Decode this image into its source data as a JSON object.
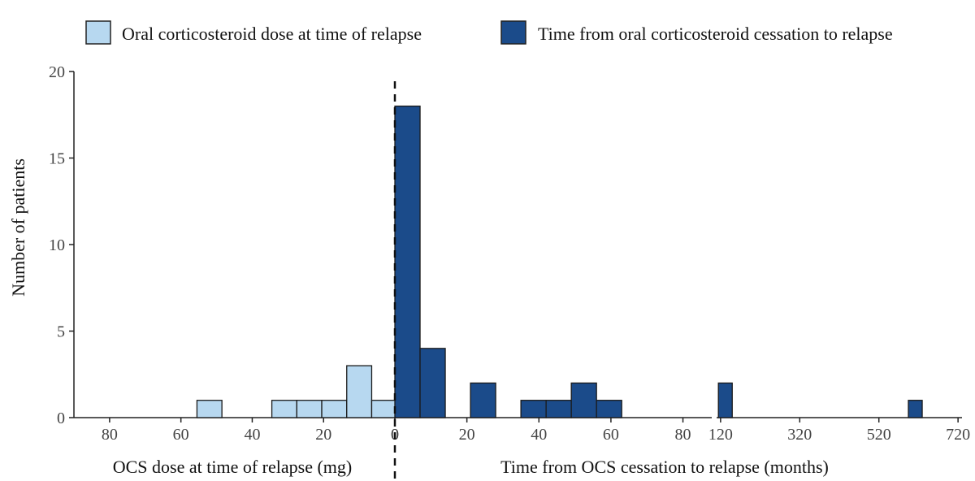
{
  "chart_data": {
    "type": "bar",
    "ylabel": "Number of patients",
    "ylim": [
      0,
      20
    ],
    "y_ticks": [
      "0",
      "5",
      "10",
      "15",
      "20"
    ],
    "legend": {
      "placement": "top",
      "items": [
        {
          "label": "Oral corticosteroid dose at time of relapse",
          "color": "#b7d8f0"
        },
        {
          "label": "Time from oral corticosteroid cessation to relapse",
          "color": "#1b4b8a"
        }
      ]
    },
    "reference_line": {
      "x": 0,
      "style": "dashed"
    },
    "panels": [
      {
        "name": "dose",
        "xlabel": "OCS dose at time of relapse (mg)",
        "reversed": true,
        "xlim": [
          90,
          0
        ],
        "x_ticks": [
          "80",
          "60",
          "40",
          "20",
          "0"
        ],
        "series": "Oral corticosteroid dose at time of relapse",
        "bin_width": 7,
        "bins": [
          {
            "x": 52,
            "count": 1
          },
          {
            "x": 31,
            "count": 1
          },
          {
            "x": 24,
            "count": 1
          },
          {
            "x": 17,
            "count": 1
          },
          {
            "x": 10,
            "count": 3
          },
          {
            "x": 3,
            "count": 1
          }
        ]
      },
      {
        "name": "time-short",
        "xlabel": "Time from OCS cessation to relapse (months)",
        "reversed": false,
        "xlim": [
          0,
          88
        ],
        "x_ticks": [
          "0",
          "20",
          "40",
          "60",
          "80"
        ],
        "series": "Time from oral corticosteroid cessation to relapse",
        "bin_width": 7,
        "bins": [
          {
            "x": 3.5,
            "count": 18
          },
          {
            "x": 10.5,
            "count": 4
          },
          {
            "x": 24.5,
            "count": 2
          },
          {
            "x": 38.5,
            "count": 1
          },
          {
            "x": 45.5,
            "count": 1
          },
          {
            "x": 52.5,
            "count": 2
          },
          {
            "x": 59.5,
            "count": 1
          }
        ]
      },
      {
        "name": "time-long",
        "xlabel": "",
        "reversed": false,
        "xlim": [
          110,
          730
        ],
        "x_ticks": [
          "120",
          "320",
          "520",
          "720"
        ],
        "series": "Time from oral corticosteroid cessation to relapse",
        "bin_width": 35,
        "bins": [
          {
            "x": 132,
            "count": 2
          },
          {
            "x": 612,
            "count": 1
          }
        ]
      }
    ]
  }
}
